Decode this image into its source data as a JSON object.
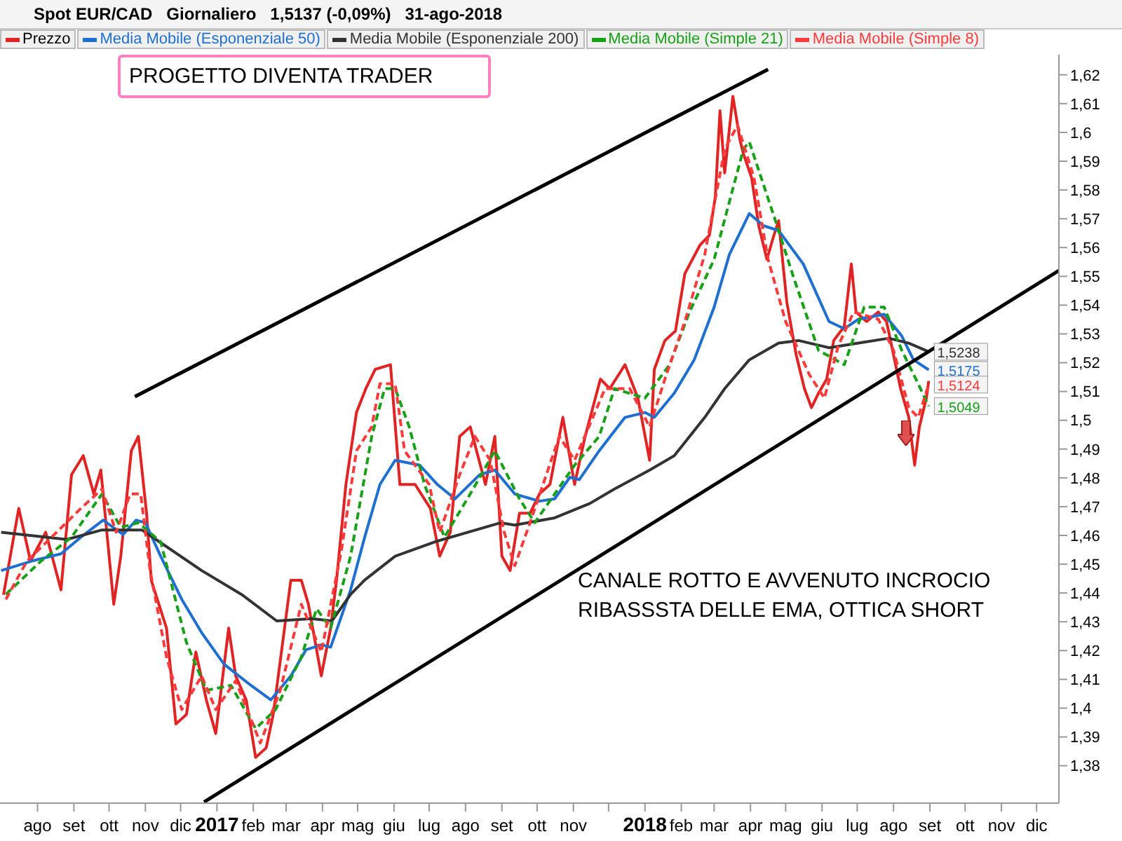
{
  "chart_data": {
    "type": "line",
    "title": "Spot EUR/CAD   Giornaliero   1,5137 (-0,09%)   31-ago-2018",
    "legend": "top left",
    "marker": "none",
    "xlim": [
      "2016-06-30",
      "2018-12-20"
    ],
    "ylim": [
      1.367,
      1.627
    ],
    "xticks": [
      {
        "value": "2016-08-01",
        "label": "ago"
      },
      {
        "value": "2016-09-01",
        "label": "set"
      },
      {
        "value": "2016-10-01",
        "label": "ott"
      },
      {
        "value": "2016-11-01",
        "label": "nov"
      },
      {
        "value": "2016-12-01",
        "label": "dic"
      },
      {
        "value": "2017-01-01",
        "label": "2017"
      },
      {
        "value": "2017-02-01",
        "label": "feb"
      },
      {
        "value": "2017-03-01",
        "label": "mar"
      },
      {
        "value": "2017-04-01",
        "label": "apr"
      },
      {
        "value": "2017-05-01",
        "label": "mag"
      },
      {
        "value": "2017-06-01",
        "label": "giu"
      },
      {
        "value": "2017-07-01",
        "label": "lug"
      },
      {
        "value": "2017-08-01",
        "label": "ago"
      },
      {
        "value": "2017-09-01",
        "label": "set"
      },
      {
        "value": "2017-10-01",
        "label": "ott"
      },
      {
        "value": "2017-11-01",
        "label": "nov"
      },
      {
        "value": "2017-12-01",
        "label": null
      },
      {
        "value": "2018-01-01",
        "label": "2018"
      },
      {
        "value": "2018-02-01",
        "label": "feb"
      },
      {
        "value": "2018-03-01",
        "label": "mar"
      },
      {
        "value": "2018-04-01",
        "label": "apr"
      },
      {
        "value": "2018-05-01",
        "label": "mag"
      },
      {
        "value": "2018-06-01",
        "label": "giu"
      },
      {
        "value": "2018-07-01",
        "label": "lug"
      },
      {
        "value": "2018-08-01",
        "label": "ago"
      },
      {
        "value": "2018-09-01",
        "label": "set"
      },
      {
        "value": "2018-10-01",
        "label": "ott"
      },
      {
        "value": "2018-11-01",
        "label": "nov"
      },
      {
        "value": "2018-12-01",
        "label": "dic"
      }
    ],
    "yticks": [
      {
        "value": 1.38,
        "label": "1,38"
      },
      {
        "value": 1.39,
        "label": "1,39"
      },
      {
        "value": 1.4,
        "label": "1,4"
      },
      {
        "value": 1.41,
        "label": "1,41"
      },
      {
        "value": 1.42,
        "label": "1,42"
      },
      {
        "value": 1.43,
        "label": "1,43"
      },
      {
        "value": 1.44,
        "label": "1,44"
      },
      {
        "value": 1.45,
        "label": "1,45"
      },
      {
        "value": 1.46,
        "label": "1,46"
      },
      {
        "value": 1.47,
        "label": "1,47"
      },
      {
        "value": 1.48,
        "label": "1,48"
      },
      {
        "value": 1.49,
        "label": "1,49"
      },
      {
        "value": 1.5,
        "label": "1,5"
      },
      {
        "value": 1.51,
        "label": "1,51"
      },
      {
        "value": 1.52,
        "label": "1,52"
      },
      {
        "value": 1.53,
        "label": "1,53"
      },
      {
        "value": 1.54,
        "label": "1,54"
      },
      {
        "value": 1.55,
        "label": "1,55"
      },
      {
        "value": 1.56,
        "label": "1,56"
      },
      {
        "value": 1.57,
        "label": "1,57"
      },
      {
        "value": 1.58,
        "label": "1,58"
      },
      {
        "value": 1.59,
        "label": "1,59"
      },
      {
        "value": 1.6,
        "label": "1,6"
      },
      {
        "value": 1.61,
        "label": "1,61"
      },
      {
        "value": 1.62,
        "label": "1,62"
      }
    ],
    "annotations": [
      "PROGETTO DIVENTA TRADER",
      "CANALE ROTTO E AVVENUTO INCROCIO RIBASSSTA DELLE EMA, OTTICA SHORT"
    ],
    "series": [
      {
        "name": "Prezzo",
        "color": "#e02424",
        "x": [
          "2016-07-03",
          "2016-07-16",
          "2016-07-26",
          "2016-08-08",
          "2016-08-21",
          "2016-08-30",
          "2016-09-09",
          "2016-09-18",
          "2016-09-24",
          "2016-10-05",
          "2016-10-11",
          "2016-10-20",
          "2016-10-26",
          "2016-11-02",
          "2016-11-06",
          "2016-11-19",
          "2016-11-27",
          "2016-12-06",
          "2016-12-14",
          "2016-12-23",
          "2016-12-31",
          "2017-01-11",
          "2017-01-17",
          "2017-01-26",
          "2017-02-03",
          "2017-02-12",
          "2017-02-18",
          "2017-02-25",
          "2017-03-05",
          "2017-03-14",
          "2017-03-20",
          "2017-03-31",
          "2017-04-08",
          "2017-04-13",
          "2017-04-21",
          "2017-04-30",
          "2017-05-08",
          "2017-05-16",
          "2017-05-29",
          "2017-06-06",
          "2017-06-19",
          "2017-07-02",
          "2017-07-10",
          "2017-07-19",
          "2017-07-27",
          "2017-08-05",
          "2017-08-18",
          "2017-08-26",
          "2017-09-01",
          "2017-09-08",
          "2017-09-16",
          "2017-09-25",
          "2017-10-03",
          "2017-10-12",
          "2017-10-23",
          "2017-11-02",
          "2017-11-11",
          "2017-11-24",
          "2017-12-02",
          "2017-12-15",
          "2017-12-26",
          "2018-01-05",
          "2018-01-09",
          "2018-01-18",
          "2018-01-27",
          "2018-02-04",
          "2018-02-17",
          "2018-02-25",
          "2018-03-02",
          "2018-03-06",
          "2018-03-10",
          "2018-03-17",
          "2018-03-23",
          "2018-03-26",
          "2018-04-02",
          "2018-04-08",
          "2018-04-15",
          "2018-04-21",
          "2018-04-25",
          "2018-05-02",
          "2018-05-10",
          "2018-05-17",
          "2018-05-23",
          "2018-05-29",
          "2018-06-05",
          "2018-06-11",
          "2018-06-20",
          "2018-06-26",
          "2018-06-30",
          "2018-07-09",
          "2018-07-19",
          "2018-07-26",
          "2018-08-01",
          "2018-08-07",
          "2018-08-14",
          "2018-08-19",
          "2018-08-23",
          "2018-08-29",
          "2018-08-31"
        ],
        "values": [
          1.4394,
          1.4694,
          1.4511,
          1.4611,
          1.4411,
          1.4811,
          1.4877,
          1.4744,
          1.4827,
          1.4361,
          1.4528,
          1.4894,
          1.4944,
          1.4677,
          1.4444,
          1.4278,
          1.3945,
          1.3978,
          1.4195,
          1.4028,
          1.3912,
          1.4278,
          1.4112,
          1.4028,
          1.3829,
          1.3862,
          1.3978,
          1.4195,
          1.4444,
          1.4444,
          1.4361,
          1.4112,
          1.4278,
          1.4444,
          1.4777,
          1.5027,
          1.511,
          1.5177,
          1.5193,
          1.4777,
          1.4777,
          1.4694,
          1.4528,
          1.4611,
          1.4944,
          1.4977,
          1.4777,
          1.4944,
          1.4528,
          1.4478,
          1.4677,
          1.4677,
          1.4744,
          1.4777,
          1.501,
          1.4777,
          1.4944,
          1.5143,
          1.511,
          1.5193,
          1.5077,
          1.4861,
          1.5177,
          1.5277,
          1.531,
          1.5509,
          1.5609,
          1.5643,
          1.5776,
          1.6075,
          1.5859,
          1.6125,
          1.5975,
          1.5925,
          1.5842,
          1.5676,
          1.5559,
          1.5643,
          1.5693,
          1.541,
          1.5227,
          1.511,
          1.5044,
          1.5094,
          1.5143,
          1.5277,
          1.5326,
          1.5543,
          1.5376,
          1.5343,
          1.5376,
          1.5343,
          1.5227,
          1.511,
          1.501,
          1.4844,
          1.4977,
          1.5077,
          1.5137
        ]
      },
      {
        "name": "Media Mobile (Esponenziale 50)",
        "color": "#1f6fd1",
        "x": [
          "2016-07-01",
          "2016-07-27",
          "2016-08-21",
          "2016-09-07",
          "2016-09-26",
          "2016-10-13",
          "2016-10-24",
          "2016-11-01",
          "2016-11-14",
          "2016-12-02",
          "2016-12-19",
          "2017-01-07",
          "2017-01-30",
          "2017-02-16",
          "2017-03-05",
          "2017-03-18",
          "2017-03-31",
          "2017-04-08",
          "2017-04-25",
          "2017-05-07",
          "2017-05-20",
          "2017-06-02",
          "2017-06-23",
          "2017-07-08",
          "2017-07-23",
          "2017-08-13",
          "2017-08-26",
          "2017-09-12",
          "2017-10-03",
          "2017-10-16",
          "2017-10-29",
          "2017-11-06",
          "2017-11-23",
          "2017-12-15",
          "2018-01-01",
          "2018-01-09",
          "2018-01-26",
          "2018-02-12",
          "2018-03-01",
          "2018-03-14",
          "2018-03-22",
          "2018-03-31",
          "2018-04-12",
          "2018-04-25",
          "2018-05-16",
          "2018-06-07",
          "2018-06-20",
          "2018-07-02",
          "2018-07-24",
          "2018-08-08",
          "2018-08-18",
          "2018-08-31"
        ],
        "values": [
          1.4478,
          1.4511,
          1.4536,
          1.4594,
          1.4653,
          1.4603,
          1.4653,
          1.4644,
          1.4528,
          1.4378,
          1.4262,
          1.4153,
          1.4079,
          1.4029,
          1.4112,
          1.4203,
          1.422,
          1.4212,
          1.4411,
          1.4594,
          1.4777,
          1.4861,
          1.4844,
          1.4777,
          1.4727,
          1.4811,
          1.4827,
          1.4744,
          1.4719,
          1.4727,
          1.4802,
          1.4794,
          1.4894,
          1.501,
          1.5027,
          1.501,
          1.5094,
          1.521,
          1.5393,
          1.5576,
          1.5643,
          1.5718,
          1.5676,
          1.5659,
          1.5543,
          1.5343,
          1.5318,
          1.5351,
          1.5368,
          1.5293,
          1.521,
          1.5175
        ],
        "value_labels": [
          null,
          null,
          null,
          null,
          null,
          null,
          null,
          null,
          null,
          null,
          null,
          null,
          null,
          null,
          null,
          null,
          null,
          null,
          null,
          null,
          null,
          null,
          null,
          null,
          null,
          null,
          null,
          null,
          null,
          null,
          null,
          null,
          null,
          null,
          null,
          null,
          null,
          null,
          null,
          null,
          null,
          null,
          null,
          null,
          null,
          null,
          null,
          null,
          null,
          null,
          null,
          "1,5175"
        ]
      },
      {
        "name": "Media Mobile (Esponenziale 200)",
        "color": "#333333",
        "x": [
          "2016-07-01",
          "2016-08-26",
          "2016-09-25",
          "2016-10-29",
          "2016-11-19",
          "2016-12-19",
          "2017-01-22",
          "2017-02-21",
          "2017-03-23",
          "2017-04-09",
          "2017-04-25",
          "2017-05-07",
          "2017-06-02",
          "2017-07-06",
          "2017-08-31",
          "2017-09-12",
          "2017-10-16",
          "2017-11-15",
          "2017-12-06",
          "2018-01-05",
          "2018-01-26",
          "2018-02-21",
          "2018-03-10",
          "2018-03-31",
          "2018-04-25",
          "2018-05-12",
          "2018-06-07",
          "2018-07-02",
          "2018-07-28",
          "2018-08-14",
          "2018-08-31"
        ],
        "values": [
          1.4611,
          1.4586,
          1.4619,
          1.4619,
          1.4561,
          1.4478,
          1.4395,
          1.4303,
          1.4311,
          1.4303,
          1.4395,
          1.4445,
          1.4528,
          1.4578,
          1.4644,
          1.4636,
          1.4661,
          1.4711,
          1.4761,
          1.4827,
          1.4877,
          1.501,
          1.511,
          1.521,
          1.5268,
          1.5277,
          1.5252,
          1.5268,
          1.5285,
          1.5268,
          1.5238
        ],
        "value_labels": [
          null,
          null,
          null,
          null,
          null,
          null,
          null,
          null,
          null,
          null,
          null,
          null,
          null,
          null,
          null,
          null,
          null,
          null,
          null,
          null,
          null,
          null,
          null,
          null,
          null,
          null,
          null,
          null,
          null,
          null,
          "1,5238"
        ]
      },
      {
        "name": "Media Mobile (Simple 21)",
        "color": "#18a018",
        "line_style": "dashed",
        "x": [
          "2016-07-05",
          "2016-08-04",
          "2016-08-30",
          "2016-09-25",
          "2016-10-11",
          "2016-10-26",
          "2016-11-14",
          "2016-12-06",
          "2016-12-23",
          "2017-01-13",
          "2017-02-03",
          "2017-02-20",
          "2017-03-14",
          "2017-03-27",
          "2017-04-08",
          "2017-04-25",
          "2017-05-13",
          "2017-05-24",
          "2017-06-02",
          "2017-06-14",
          "2017-06-27",
          "2017-07-14",
          "2017-08-05",
          "2017-08-26",
          "2017-09-16",
          "2017-09-29",
          "2017-10-16",
          "2017-11-02",
          "2017-11-23",
          "2017-12-06",
          "2018-01-01",
          "2018-01-22",
          "2018-02-08",
          "2018-03-01",
          "2018-03-14",
          "2018-03-26",
          "2018-03-31",
          "2018-04-21",
          "2018-05-08",
          "2018-05-29",
          "2018-06-20",
          "2018-07-07",
          "2018-07-24",
          "2018-08-08",
          "2018-08-22",
          "2018-08-31"
        ],
        "values": [
          1.4395,
          1.4511,
          1.4594,
          1.4744,
          1.4628,
          1.4644,
          1.4578,
          1.4228,
          1.4062,
          1.4079,
          1.3929,
          1.3995,
          1.4178,
          1.4345,
          1.4278,
          1.4528,
          1.4944,
          1.511,
          1.511,
          1.4977,
          1.4777,
          1.4594,
          1.4744,
          1.4894,
          1.4727,
          1.4644,
          1.4744,
          1.4844,
          1.4944,
          1.511,
          1.5077,
          1.5193,
          1.5376,
          1.5559,
          1.5759,
          1.5942,
          1.5967,
          1.5709,
          1.5493,
          1.5243,
          1.5193,
          1.5393,
          1.5393,
          1.5243,
          1.5127,
          1.5049
        ],
        "value_labels": [
          null,
          null,
          null,
          null,
          null,
          null,
          null,
          null,
          null,
          null,
          null,
          null,
          null,
          null,
          null,
          null,
          null,
          null,
          null,
          null,
          null,
          null,
          null,
          null,
          null,
          null,
          null,
          null,
          null,
          null,
          null,
          null,
          null,
          null,
          null,
          null,
          null,
          null,
          null,
          null,
          null,
          null,
          null,
          null,
          null,
          "1,5049"
        ]
      },
      {
        "name": "Media Mobile (Simple 8)",
        "color": "#ff3a3a",
        "line_style": "dashed",
        "x": [
          "2016-07-05",
          "2016-07-23",
          "2016-08-13",
          "2016-09-07",
          "2016-09-25",
          "2016-10-07",
          "2016-10-19",
          "2016-10-28",
          "2016-11-05",
          "2016-11-19",
          "2016-12-02",
          "2016-12-19",
          "2016-12-31",
          "2017-01-17",
          "2017-02-07",
          "2017-02-24",
          "2017-03-14",
          "2017-03-31",
          "2017-04-17",
          "2017-04-30",
          "2017-05-13",
          "2017-05-20",
          "2017-06-02",
          "2017-06-10",
          "2017-07-01",
          "2017-07-10",
          "2017-07-27",
          "2017-08-09",
          "2017-08-22",
          "2017-09-03",
          "2017-09-12",
          "2017-09-25",
          "2017-10-20",
          "2017-11-02",
          "2017-11-28",
          "2017-12-19",
          "2018-01-05",
          "2018-01-18",
          "2018-02-04",
          "2018-02-21",
          "2018-03-10",
          "2018-03-21",
          "2018-04-04",
          "2018-04-16",
          "2018-05-01",
          "2018-05-21",
          "2018-06-03",
          "2018-06-15",
          "2018-06-28",
          "2018-07-19",
          "2018-08-01",
          "2018-08-14",
          "2018-08-22",
          "2018-08-31"
        ],
        "values": [
          1.4378,
          1.4511,
          1.4594,
          1.4694,
          1.4761,
          1.4611,
          1.4744,
          1.4744,
          1.4478,
          1.4178,
          1.3995,
          1.4112,
          1.3995,
          1.4095,
          1.3879,
          1.4062,
          1.4361,
          1.4195,
          1.4544,
          1.4894,
          1.4977,
          1.5127,
          1.5127,
          1.4894,
          1.4777,
          1.4611,
          1.4811,
          1.4944,
          1.4861,
          1.4611,
          1.4495,
          1.4644,
          1.4944,
          1.4861,
          1.511,
          1.511,
          1.4977,
          1.5143,
          1.5343,
          1.5576,
          1.5942,
          1.6025,
          1.5842,
          1.5559,
          1.5343,
          1.516,
          1.5077,
          1.526,
          1.5376,
          1.5351,
          1.5243,
          1.5044,
          1.501,
          1.5124
        ],
        "value_labels": [
          null,
          null,
          null,
          null,
          null,
          null,
          null,
          null,
          null,
          null,
          null,
          null,
          null,
          null,
          null,
          null,
          null,
          null,
          null,
          null,
          null,
          null,
          null,
          null,
          null,
          null,
          null,
          null,
          null,
          null,
          null,
          null,
          null,
          null,
          null,
          null,
          null,
          null,
          null,
          null,
          null,
          null,
          null,
          null,
          null,
          null,
          null,
          null,
          null,
          null,
          null,
          null,
          null,
          "1,5124"
        ]
      },
      {
        "color": "#000000",
        "x": [
          "2016-10-23",
          "2018-04-16"
        ],
        "values": [
          1.5082,
          1.6219
        ]
      },
      {
        "color": "#000000",
        "x": [
          "2016-12-21",
          "2018-12-20"
        ],
        "values": [
          1.3674,
          1.552
        ]
      }
    ]
  }
}
